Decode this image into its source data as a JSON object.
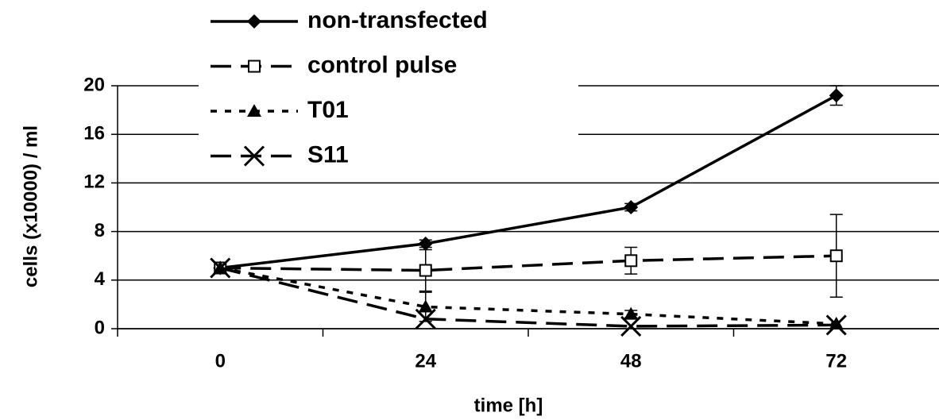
{
  "chart_data": {
    "type": "line",
    "x_label": "time [h]",
    "y_label": "cells (x10000) / ml",
    "categories": [
      "0",
      "24",
      "48",
      "72"
    ],
    "ylim": [
      0,
      20
    ],
    "yticks": [
      0,
      4,
      8,
      12,
      16,
      20
    ],
    "grid": true,
    "series": [
      {
        "name": "non-transfected",
        "color": "#000000",
        "dash": "solid",
        "marker": "diamond",
        "values": [
          5,
          7,
          10,
          19.2
        ],
        "errors": [
          null,
          0.3,
          0.3,
          0.8
        ]
      },
      {
        "name": "control pulse",
        "color": "#000000",
        "dash": "long-dash",
        "marker": "square",
        "values": [
          5,
          4.8,
          5.6,
          6
        ],
        "errors": [
          null,
          1.7,
          1.1,
          3.4
        ]
      },
      {
        "name": "T01",
        "color": "#000000",
        "dash": "dot",
        "marker": "triangle",
        "values": [
          5,
          1.8,
          1.2,
          0.4
        ],
        "errors": [
          null,
          1.2,
          0.3,
          null
        ]
      },
      {
        "name": "S11",
        "color": "#000000",
        "dash": "long-dash",
        "marker": "x",
        "values": [
          5,
          0.8,
          0.2,
          0.3
        ]
      }
    ]
  }
}
